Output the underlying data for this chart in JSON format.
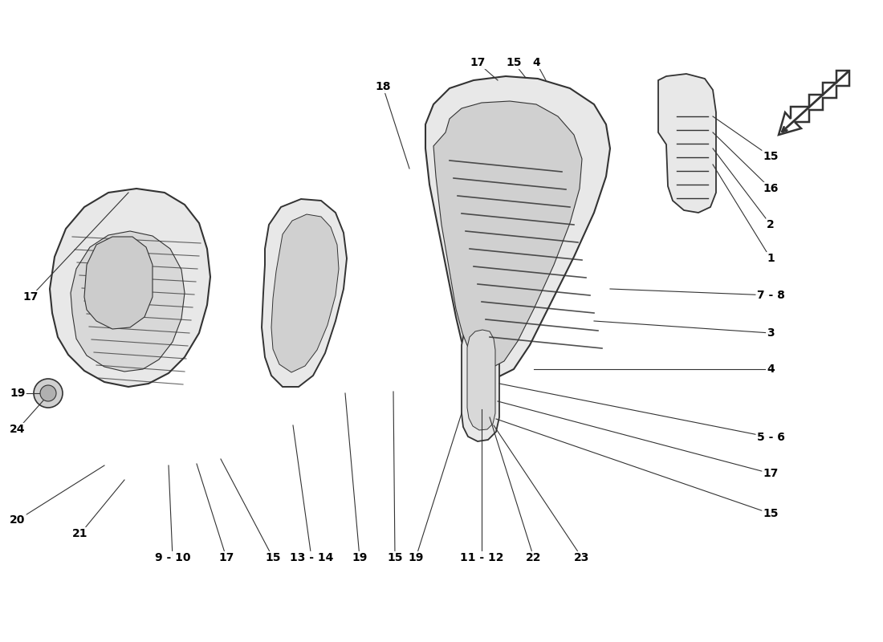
{
  "background_color": "#ffffff",
  "line_color": "#333333",
  "text_color": "#000000",
  "fig_width": 11.0,
  "fig_height": 8.0
}
